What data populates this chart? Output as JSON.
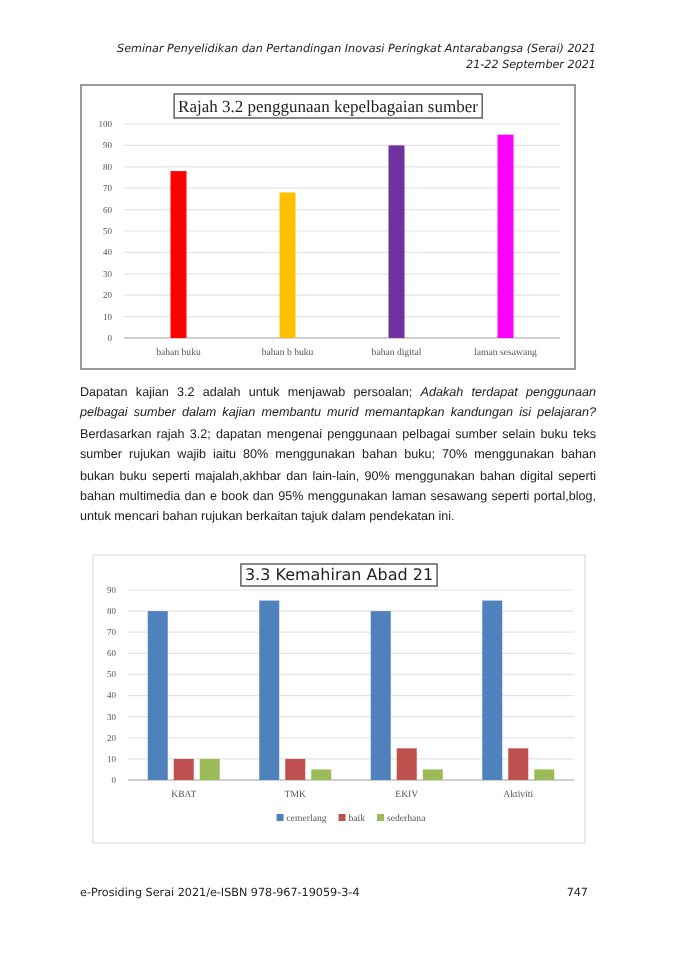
{
  "chart_data": [
    {
      "type": "bar",
      "title": "Rajah 3.2 penggunaan kepelbagaian sumber",
      "categories": [
        "bahan buku",
        "bahan b buku",
        "bahan digital",
        "laman sesawang"
      ],
      "values": [
        78,
        68,
        90,
        95
      ],
      "colors": [
        "#ff0000",
        "#ffc000",
        "#7030a0",
        "#ff00ff"
      ],
      "ylim": [
        0,
        100
      ],
      "yticks": [
        0,
        10,
        20,
        30,
        40,
        50,
        60,
        70,
        80,
        90,
        100
      ],
      "grid": "y",
      "legend": false,
      "annotations": [
        "Seminar Penyelidikan dan Pertandingan Inovasi Peringkat Antarabangsa (Serai) 2021",
        "21-22 September 2021",
        "Dapatan kajian 3.2 adalah untuk menjawab persoalan; ",
        "Adakah terdapat penggunaan pelbagai sumber dalam kajian membantu murid memantapkan kandungan isi pelajaran?",
        " Berdasarkan rajah 3.2; dapatan mengenai penggunaan pelbagai sumber selain buku teks sumber rujukan wajib iaitu 80% menggunakan bahan buku; 70% menggunakan bahan bukan buku seperti majalah,akhbar dan lain-lain, 90% menggunakan bahan digital seperti bahan multimedia dan e book dan 95% menggunakan  laman sesawang seperti portal,blog, untuk mencari bahan rujukan berkaitan tajuk dalam pendekatan ini."
      ]
    },
    {
      "type": "bar",
      "title": "3.3 Kemahiran Abad 21",
      "categories": [
        "KBAT",
        "TMK",
        "EKIV",
        "Aktiviti"
      ],
      "series": [
        {
          "name": "cemerlang",
          "color": "#4f81bd",
          "values": [
            80,
            85,
            80,
            85
          ]
        },
        {
          "name": "baik",
          "color": "#c0504d",
          "values": [
            10,
            10,
            15,
            15
          ]
        },
        {
          "name": "sederhana",
          "color": "#9bbb59",
          "values": [
            10,
            5,
            5,
            5
          ]
        }
      ],
      "ylim": [
        0,
        90
      ],
      "yticks": [
        0,
        10,
        20,
        30,
        40,
        50,
        60,
        70,
        80,
        90
      ],
      "grid": "y",
      "legend": "bottom",
      "annotations": [
        "e-Prosiding Serai 2021/e-ISBN 978-967-19059-3-4",
        "747"
      ]
    }
  ]
}
